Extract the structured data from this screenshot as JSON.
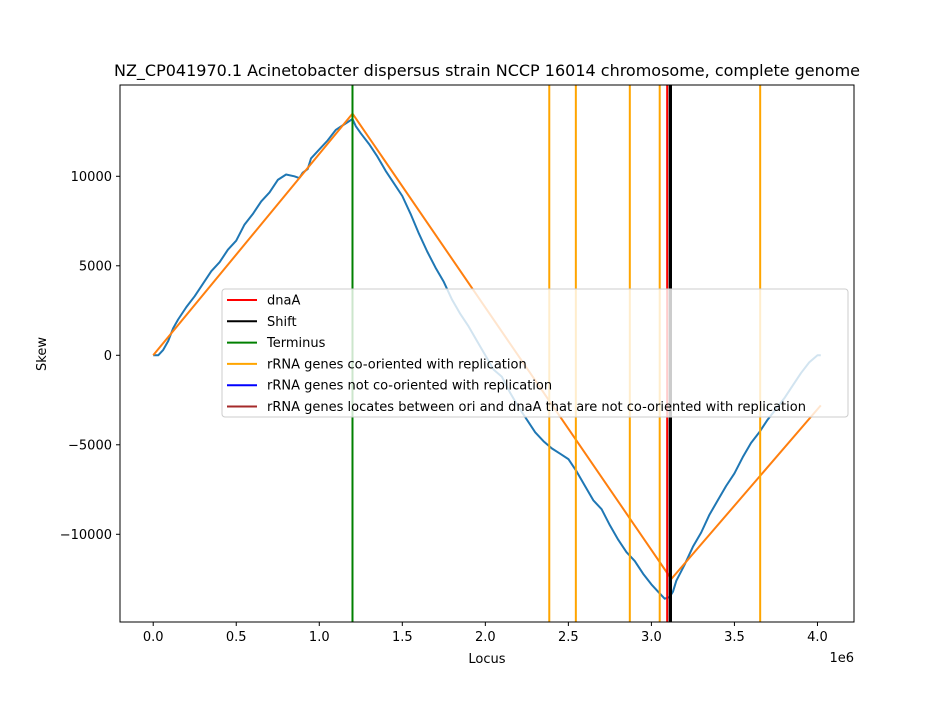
{
  "chart_data": {
    "type": "line",
    "title": "NZ_CP041970.1 Acinetobacter dispersus strain NCCP 16014 chromosome, complete genome",
    "xlabel": "Locus",
    "ylabel": "Skew",
    "x_offset_label": "1e6",
    "xlim": [
      -0.2,
      4.22
    ],
    "ylim": [
      -14900,
      15100
    ],
    "xticks": [
      0.0,
      0.5,
      1.0,
      1.5,
      2.0,
      2.5,
      3.0,
      3.5,
      4.0
    ],
    "xtick_labels": [
      "0.0",
      "0.5",
      "1.0",
      "1.5",
      "2.0",
      "2.5",
      "3.0",
      "3.5",
      "4.0"
    ],
    "yticks": [
      -10000,
      -5000,
      0,
      5000,
      10000
    ],
    "ytick_labels": [
      "−10000",
      "−5000",
      "0",
      "5000",
      "10000"
    ],
    "grid": false,
    "legend_placement": "center-right",
    "series": [
      {
        "key": "skew",
        "color": "#1f77b4",
        "x": [
          0.0,
          0.03,
          0.06,
          0.09,
          0.12,
          0.15,
          0.2,
          0.25,
          0.3,
          0.35,
          0.4,
          0.45,
          0.5,
          0.55,
          0.6,
          0.65,
          0.7,
          0.75,
          0.8,
          0.85,
          0.88,
          0.9,
          0.93,
          0.95,
          1.0,
          1.05,
          1.1,
          1.15,
          1.2,
          1.22,
          1.25,
          1.3,
          1.35,
          1.4,
          1.45,
          1.5,
          1.55,
          1.6,
          1.65,
          1.7,
          1.75,
          1.8,
          1.85,
          1.9,
          1.95,
          2.0,
          2.05,
          2.1,
          2.15,
          2.2,
          2.25,
          2.3,
          2.35,
          2.4,
          2.45,
          2.5,
          2.55,
          2.6,
          2.65,
          2.7,
          2.75,
          2.8,
          2.85,
          2.9,
          2.95,
          3.0,
          3.05,
          3.08,
          3.11,
          3.13,
          3.15,
          3.2,
          3.25,
          3.3,
          3.35,
          3.4,
          3.45,
          3.5,
          3.55,
          3.6,
          3.65,
          3.7,
          3.75,
          3.8,
          3.85,
          3.9,
          3.95,
          4.0,
          4.02
        ],
        "y": [
          0,
          0,
          300,
          800,
          1500,
          2000,
          2700,
          3300,
          4000,
          4700,
          5200,
          5900,
          6400,
          7300,
          7900,
          8600,
          9100,
          9800,
          10100,
          10000,
          9900,
          10200,
          10400,
          11000,
          11500,
          12000,
          12600,
          12900,
          13200,
          12800,
          12400,
          11800,
          11100,
          10300,
          9600,
          8900,
          7900,
          6800,
          5800,
          4900,
          4100,
          3100,
          2300,
          1600,
          800,
          0,
          -800,
          -1200,
          -2100,
          -2900,
          -3600,
          -4300,
          -4800,
          -5200,
          -5500,
          -5800,
          -6500,
          -7300,
          -8100,
          -8600,
          -9500,
          -10300,
          -11000,
          -11500,
          -12200,
          -12800,
          -13300,
          -13600,
          -13500,
          -13200,
          -12600,
          -11700,
          -10700,
          -9900,
          -8900,
          -8100,
          -7300,
          -6600,
          -5700,
          -4900,
          -4300,
          -3600,
          -3000,
          -2400,
          -1700,
          -1000,
          -400,
          0,
          0
        ]
      },
      {
        "key": "fit",
        "color": "#ff7f0e",
        "x": [
          0.0,
          1.2,
          3.12,
          4.02
        ],
        "y": [
          0,
          13500,
          -12500,
          -2800
        ]
      }
    ],
    "vlines": [
      {
        "x": 1.2,
        "color": "#008000",
        "kind": "terminus"
      },
      {
        "x": 2.385,
        "color": "#ffa500",
        "kind": "rrna-co"
      },
      {
        "x": 2.545,
        "color": "#ffa500",
        "kind": "rrna-co"
      },
      {
        "x": 2.87,
        "color": "#ffa500",
        "kind": "rrna-co"
      },
      {
        "x": 3.05,
        "color": "#ffa500",
        "kind": "rrna-co"
      },
      {
        "x": 3.655,
        "color": "#ffa500",
        "kind": "rrna-co"
      },
      {
        "x": 3.095,
        "color": "#ff0000",
        "kind": "dnaa"
      },
      {
        "x": 3.11,
        "color": "#000000",
        "kind": "shift"
      },
      {
        "x": 3.118,
        "color": "#000000",
        "kind": "shift"
      }
    ],
    "legend": [
      {
        "label": "dnaA",
        "color": "#ff0000"
      },
      {
        "label": "Shift",
        "color": "#000000"
      },
      {
        "label": "Terminus",
        "color": "#008000"
      },
      {
        "label": "rRNA genes co-oriented with replication",
        "color": "#ffa500"
      },
      {
        "label": "rRNA genes not co-oriented with replication",
        "color": "#0000ff"
      },
      {
        "label": "rRNA genes locates between ori and dnaA that are not co-oriented with replication",
        "color": "#a52a2a"
      }
    ]
  }
}
